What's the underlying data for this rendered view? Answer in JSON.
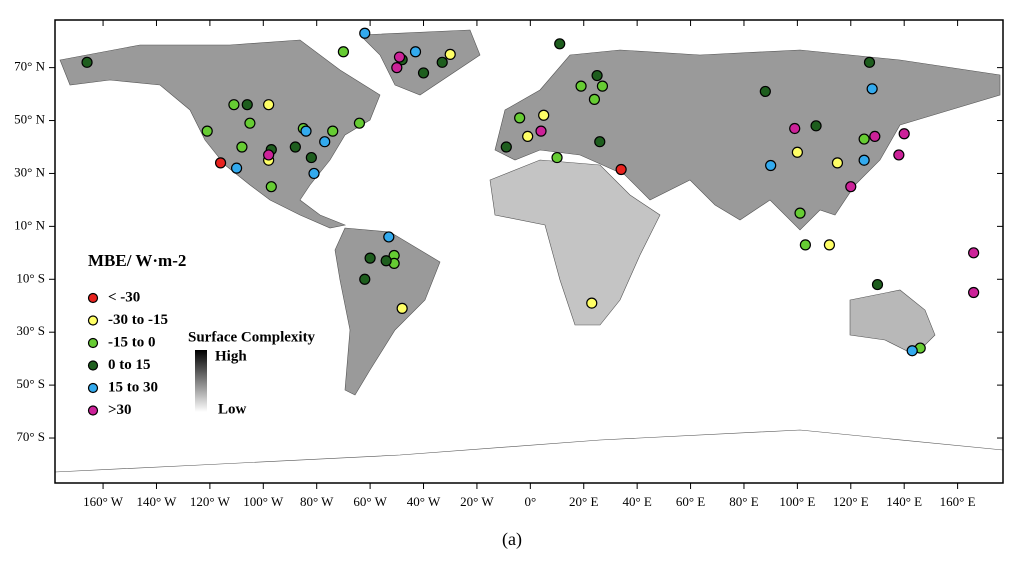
{
  "chart_data": {
    "type": "scatter",
    "legend_title": "MBE/ W·m-2",
    "colorbar": {
      "title": "Surface Complexity",
      "high": "High",
      "low": "Low"
    },
    "caption": "(a)",
    "xlim": [
      -178,
      177
    ],
    "ylim": [
      -87,
      88
    ],
    "xticks": [
      {
        "value": -160,
        "label": "160° W"
      },
      {
        "value": -140,
        "label": "140° W"
      },
      {
        "value": -120,
        "label": "120° W"
      },
      {
        "value": -100,
        "label": "100° W"
      },
      {
        "value": -80,
        "label": "80° W"
      },
      {
        "value": -60,
        "label": "60° W"
      },
      {
        "value": -40,
        "label": "40° W"
      },
      {
        "value": -20,
        "label": "20° W"
      },
      {
        "value": 0,
        "label": "0°"
      },
      {
        "value": 20,
        "label": "20° E"
      },
      {
        "value": 40,
        "label": "40° E"
      },
      {
        "value": 60,
        "label": "60° E"
      },
      {
        "value": 80,
        "label": "80° E"
      },
      {
        "value": 100,
        "label": "100° E"
      },
      {
        "value": 120,
        "label": "120° E"
      },
      {
        "value": 140,
        "label": "140° E"
      },
      {
        "value": 160,
        "label": "160° E"
      }
    ],
    "yticks": [
      {
        "value": 70,
        "label": "70° N"
      },
      {
        "value": 50,
        "label": "50° N"
      },
      {
        "value": 30,
        "label": "30° N"
      },
      {
        "value": 10,
        "label": "10° N"
      },
      {
        "value": -10,
        "label": "10° S"
      },
      {
        "value": -30,
        "label": "30° S"
      },
      {
        "value": -50,
        "label": "50° S"
      },
      {
        "value": -70,
        "label": "70° S"
      }
    ],
    "series": [
      {
        "name": "< -30",
        "color": "#e8221e",
        "x": [
          -116,
          34
        ],
        "y": [
          34,
          31.5
        ]
      },
      {
        "name": "-30 to -15",
        "color": "#ffff66",
        "x": [
          -98,
          -98,
          -30,
          -1,
          5,
          100,
          115,
          112,
          23,
          -48
        ],
        "y": [
          35,
          56,
          75,
          44,
          52,
          38,
          34,
          3,
          -19,
          -21
        ]
      },
      {
        "name": "-15 to 0",
        "color": "#66cc33",
        "x": [
          -121,
          -111,
          -105,
          -108,
          -97,
          -85,
          -74,
          -64,
          -70,
          19,
          24,
          10,
          -4,
          125,
          101,
          103,
          -51,
          -51,
          146,
          27
        ],
        "y": [
          46,
          56,
          49,
          40,
          25,
          47,
          46,
          49,
          76,
          63,
          58,
          36,
          51,
          43,
          15,
          3,
          -1,
          -4,
          -36,
          63
        ]
      },
      {
        "name": "0 to 15",
        "color": "#1e5e1e",
        "x": [
          -166,
          -106,
          -97,
          -88,
          -82,
          -48,
          -40,
          -33,
          11,
          25,
          88,
          107,
          127,
          130,
          -60,
          -62,
          -54,
          26,
          -9
        ],
        "y": [
          72,
          56,
          39,
          40,
          36,
          73,
          68,
          72,
          79,
          67,
          61,
          48,
          72,
          -12,
          -2,
          -10,
          -3,
          42,
          40
        ]
      },
      {
        "name": "15 to 30",
        "color": "#33aaee",
        "x": [
          -62,
          -43,
          -110,
          -84,
          -77,
          -81,
          -53,
          90,
          128,
          125,
          143
        ],
        "y": [
          83,
          76,
          32,
          46,
          42,
          30,
          6,
          33,
          62,
          35,
          -37
        ]
      },
      {
        "name": ">30",
        "color": "#cc2299",
        "x": [
          -98,
          -49,
          -50,
          4,
          99,
          120,
          129,
          140,
          138,
          166,
          166
        ],
        "y": [
          37,
          74,
          70,
          46,
          47,
          25,
          44,
          45,
          37,
          0,
          -15
        ]
      }
    ]
  }
}
